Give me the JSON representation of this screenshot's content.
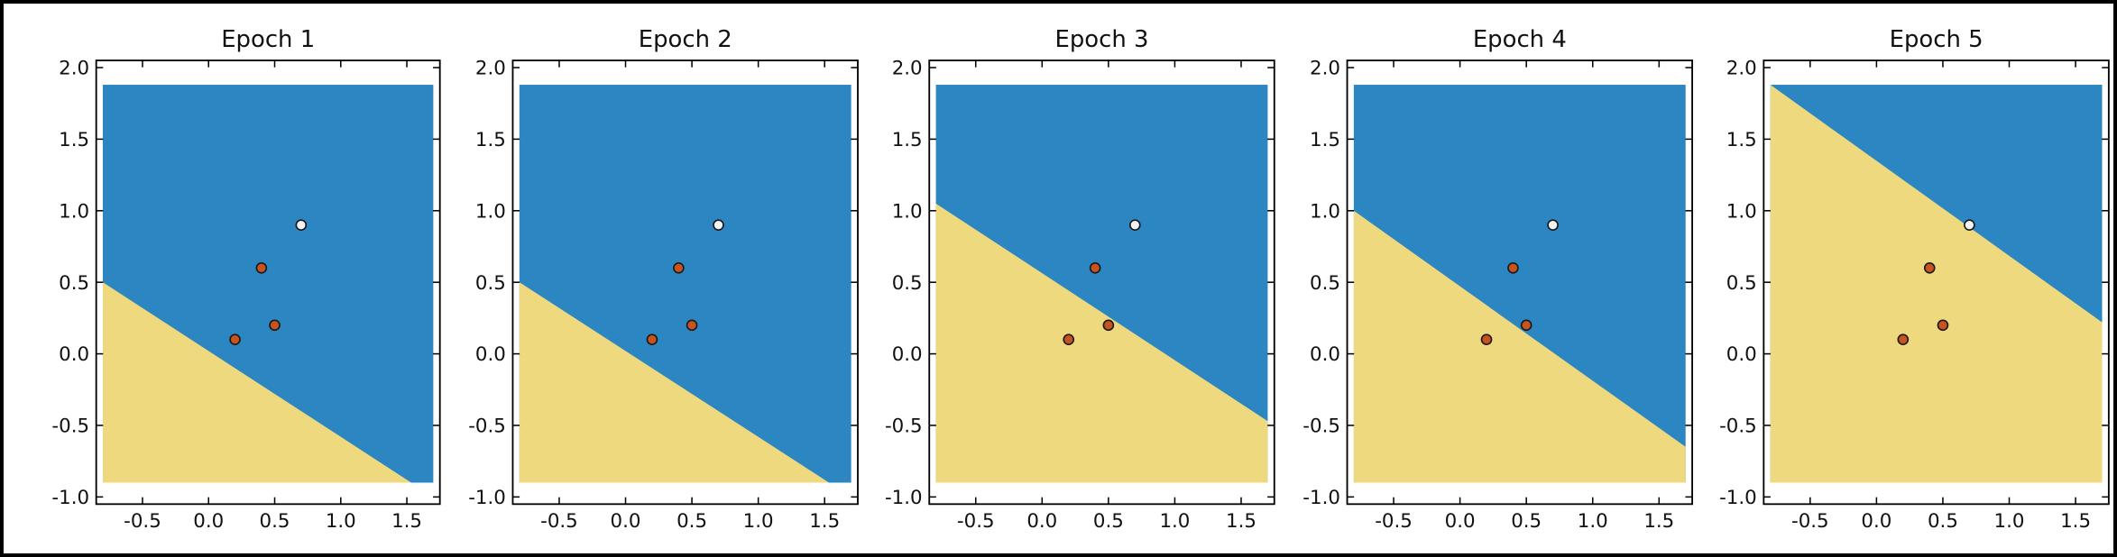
{
  "chart_data": [
    {
      "type": "scatter",
      "title": "Epoch 1",
      "xlim": [
        -0.85,
        1.75
      ],
      "ylim": [
        -1.05,
        2.05
      ],
      "xticks": [
        "-0.5",
        "0.0",
        "0.5",
        "1.0",
        "1.5"
      ],
      "yticks": [
        "2.0",
        "1.5",
        "1.0",
        "0.5",
        "0.0",
        "-0.5",
        "-1.0"
      ],
      "region": {
        "x": [
          -0.8,
          1.7
        ],
        "y": [
          -0.9,
          1.88
        ]
      },
      "boundary": [
        {
          "x": -0.8,
          "y": 0.5
        },
        {
          "x": 1.7,
          "y": -1.0
        }
      ],
      "colors": {
        "above": "#2b86c2",
        "below": "#eed97f"
      },
      "points": [
        {
          "x": 0.2,
          "y": 0.1,
          "class": "orange"
        },
        {
          "x": 0.4,
          "y": 0.6,
          "class": "orange"
        },
        {
          "x": 0.5,
          "y": 0.2,
          "class": "orange"
        },
        {
          "x": 0.7,
          "y": 0.9,
          "class": "white"
        }
      ]
    },
    {
      "type": "scatter",
      "title": "Epoch 2",
      "xlim": [
        -0.85,
        1.75
      ],
      "ylim": [
        -1.05,
        2.05
      ],
      "xticks": [
        "-0.5",
        "0.0",
        "0.5",
        "1.0",
        "1.5"
      ],
      "yticks": [
        "2.0",
        "1.5",
        "1.0",
        "0.5",
        "0.0",
        "-0.5",
        "-1.0"
      ],
      "region": {
        "x": [
          -0.8,
          1.7
        ],
        "y": [
          -0.9,
          1.88
        ]
      },
      "boundary": [
        {
          "x": -0.8,
          "y": 0.5
        },
        {
          "x": 1.7,
          "y": -1.0
        }
      ],
      "colors": {
        "above": "#2b86c2",
        "below": "#eed97f"
      },
      "points": [
        {
          "x": 0.2,
          "y": 0.1,
          "class": "orange"
        },
        {
          "x": 0.4,
          "y": 0.6,
          "class": "orange"
        },
        {
          "x": 0.5,
          "y": 0.2,
          "class": "orange"
        },
        {
          "x": 0.7,
          "y": 0.9,
          "class": "white"
        }
      ]
    },
    {
      "type": "scatter",
      "title": "Epoch 3",
      "xlim": [
        -0.85,
        1.75
      ],
      "ylim": [
        -1.05,
        2.05
      ],
      "xticks": [
        "-0.5",
        "0.0",
        "0.5",
        "1.0",
        "1.5"
      ],
      "yticks": [
        "2.0",
        "1.5",
        "1.0",
        "0.5",
        "0.0",
        "-0.5",
        "-1.0"
      ],
      "region": {
        "x": [
          -0.8,
          1.7
        ],
        "y": [
          -0.9,
          1.88
        ]
      },
      "boundary": [
        {
          "x": -0.8,
          "y": 1.05
        },
        {
          "x": 1.7,
          "y": -0.47
        }
      ],
      "colors": {
        "above": "#2b86c2",
        "below": "#eed97f"
      },
      "points": [
        {
          "x": 0.2,
          "y": 0.1,
          "class": "orange"
        },
        {
          "x": 0.4,
          "y": 0.6,
          "class": "orange"
        },
        {
          "x": 0.5,
          "y": 0.2,
          "class": "orange"
        },
        {
          "x": 0.7,
          "y": 0.9,
          "class": "white"
        }
      ]
    },
    {
      "type": "scatter",
      "title": "Epoch 4",
      "xlim": [
        -0.85,
        1.75
      ],
      "ylim": [
        -1.05,
        2.05
      ],
      "xticks": [
        "-0.5",
        "0.0",
        "0.5",
        "1.0",
        "1.5"
      ],
      "yticks": [
        "2.0",
        "1.5",
        "1.0",
        "0.5",
        "0.0",
        "-0.5",
        "-1.0"
      ],
      "region": {
        "x": [
          -0.8,
          1.7
        ],
        "y": [
          -0.9,
          1.88
        ]
      },
      "boundary": [
        {
          "x": -0.8,
          "y": 1.0
        },
        {
          "x": 1.7,
          "y": -0.65
        }
      ],
      "colors": {
        "above": "#2b86c2",
        "below": "#eed97f"
      },
      "points": [
        {
          "x": 0.2,
          "y": 0.1,
          "class": "orange"
        },
        {
          "x": 0.4,
          "y": 0.6,
          "class": "orange"
        },
        {
          "x": 0.5,
          "y": 0.2,
          "class": "orange"
        },
        {
          "x": 0.7,
          "y": 0.9,
          "class": "white"
        }
      ]
    },
    {
      "type": "scatter",
      "title": "Epoch 5",
      "xlim": [
        -0.85,
        1.75
      ],
      "ylim": [
        -1.05,
        2.05
      ],
      "xticks": [
        "-0.5",
        "0.0",
        "0.5",
        "1.0",
        "1.5"
      ],
      "yticks": [
        "2.0",
        "1.5",
        "1.0",
        "0.5",
        "0.0",
        "-0.5",
        "-1.0"
      ],
      "region": {
        "x": [
          -0.8,
          1.7
        ],
        "y": [
          -0.9,
          1.88
        ]
      },
      "boundary": [
        {
          "x": -0.8,
          "y": 1.88
        },
        {
          "x": 1.7,
          "y": 0.22
        }
      ],
      "colors": {
        "above": "#2b86c2",
        "below": "#eed97f"
      },
      "points": [
        {
          "x": 0.2,
          "y": 0.1,
          "class": "orange"
        },
        {
          "x": 0.4,
          "y": 0.6,
          "class": "orange"
        },
        {
          "x": 0.5,
          "y": 0.2,
          "class": "orange"
        },
        {
          "x": 0.7,
          "y": 0.9,
          "class": "white"
        }
      ]
    }
  ],
  "point_colors": {
    "orange": "#c9531f",
    "white": "#f3f3f3",
    "edge": "#1a1a1a"
  }
}
